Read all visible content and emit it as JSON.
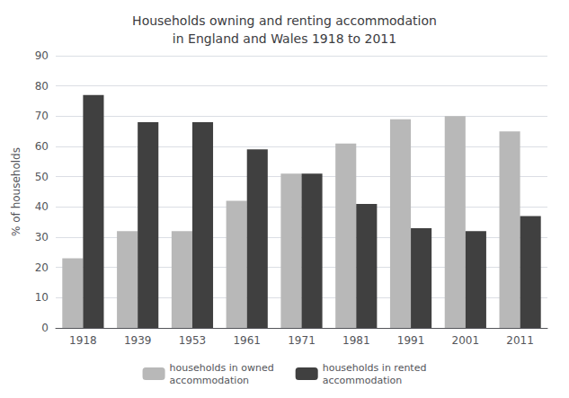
{
  "chart_data": {
    "type": "bar",
    "title": "Households owning and renting accommodation\nin England and Wales 1918 to 2011",
    "categories": [
      "1918",
      "1939",
      "1953",
      "1961",
      "1971",
      "1981",
      "1991",
      "2001",
      "2011"
    ],
    "series": [
      {
        "name": "households in owned\naccommodation",
        "color": "#b8b8b8",
        "values": [
          23,
          32,
          32,
          42,
          51,
          61,
          69,
          70,
          65
        ]
      },
      {
        "name": "households in rented\naccommodation",
        "color": "#404040",
        "values": [
          77,
          68,
          68,
          59,
          51,
          41,
          33,
          32,
          37
        ]
      }
    ],
    "ylabel": "% of households",
    "ylim": [
      0,
      90
    ],
    "yticks": [
      0,
      10,
      20,
      30,
      40,
      50,
      60,
      70,
      80,
      90
    ],
    "grid": true,
    "legend": "bottom"
  }
}
